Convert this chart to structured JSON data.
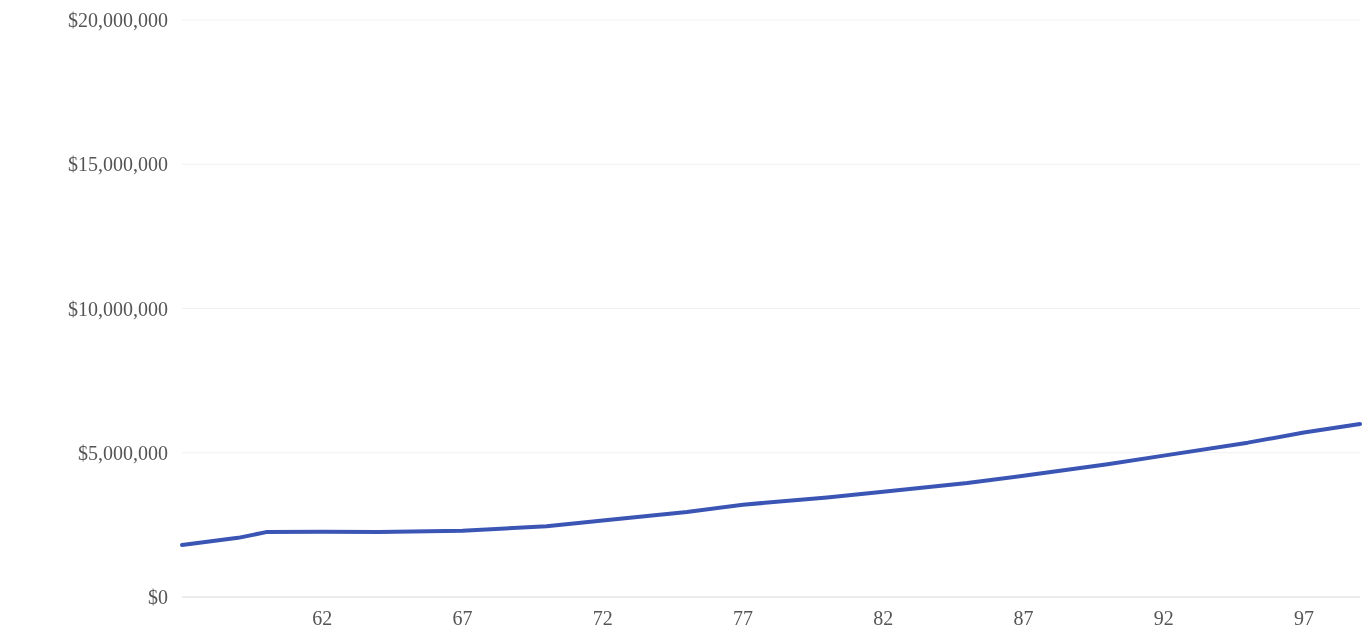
{
  "chart_data": {
    "type": "line",
    "x": [
      57,
      59,
      60,
      62,
      64,
      67,
      70,
      72,
      75,
      77,
      80,
      82,
      85,
      87,
      90,
      92,
      95,
      97,
      99
    ],
    "series": [
      {
        "color": "#3b55b5",
        "values": [
          1800000,
          2050000,
          2250000,
          2260000,
          2250000,
          2300000,
          2450000,
          2650000,
          2950000,
          3200000,
          3450000,
          3650000,
          3950000,
          4200000,
          4600000,
          4900000,
          5350000,
          5700000,
          6000000
        ]
      }
    ],
    "xlim": [
      57,
      99
    ],
    "xticks": [
      62,
      67,
      72,
      77,
      82,
      87,
      92,
      97
    ],
    "ylim": [
      0,
      20000000
    ],
    "yticks": [
      {
        "value": 0,
        "label": "$0"
      },
      {
        "value": 5000000,
        "label": "$5,000,000"
      },
      {
        "value": 10000000,
        "label": "$10,000,000"
      },
      {
        "value": 15000000,
        "label": "$15,000,000"
      },
      {
        "value": 20000000,
        "label": "$20,000,000"
      }
    ],
    "grid": "y"
  }
}
